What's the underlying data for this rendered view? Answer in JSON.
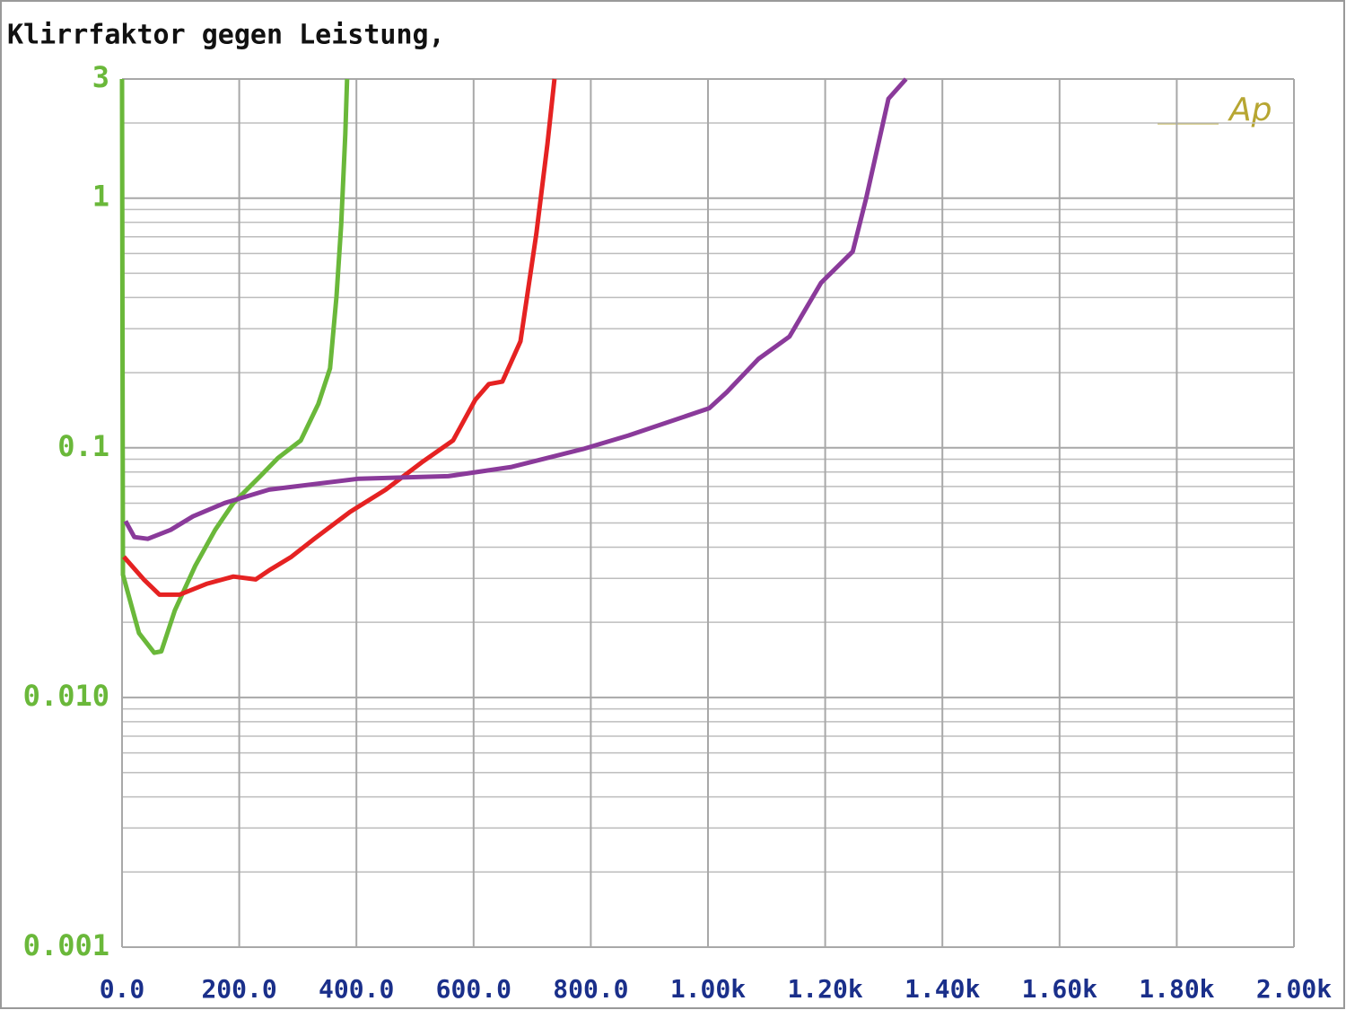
{
  "chart_data": {
    "type": "line",
    "title": "Klirrfaktor gegen Leistung,",
    "logo": "Ap",
    "log_y": true,
    "grid": true,
    "minor_grid": true,
    "xlim": [
      0,
      2000
    ],
    "ylim": [
      0.001,
      3
    ],
    "xticks": [
      {
        "value": 0,
        "label": "0.0"
      },
      {
        "value": 200,
        "label": "200.0"
      },
      {
        "value": 400,
        "label": "400.0"
      },
      {
        "value": 600,
        "label": "600.0"
      },
      {
        "value": 800,
        "label": "800.0"
      },
      {
        "value": 1000,
        "label": "1.00k"
      },
      {
        "value": 1200,
        "label": "1.20k"
      },
      {
        "value": 1400,
        "label": "1.40k"
      },
      {
        "value": 1600,
        "label": "1.60k"
      },
      {
        "value": 1800,
        "label": "1.80k"
      },
      {
        "value": 2000,
        "label": "2.00k"
      }
    ],
    "yticks": [
      3,
      1,
      0.1,
      {
        "value": 0.01,
        "label": "0.010"
      },
      0.001
    ],
    "series": [
      {
        "color": "#6ab83a",
        "x": [
          0,
          1.5,
          29,
          55,
          67,
          90,
          125,
          159,
          190,
          236,
          266,
          305,
          335,
          355,
          366,
          374,
          381,
          384
        ],
        "values": [
          3,
          0.031,
          0.0181,
          0.0151,
          0.0153,
          0.0223,
          0.0337,
          0.0469,
          0.0601,
          0.077,
          0.091,
          0.107,
          0.15,
          0.208,
          0.404,
          0.78,
          1.8,
          3
        ]
      },
      {
        "color": "#e52222",
        "x": [
          3,
          37,
          64,
          98,
          144,
          190,
          228,
          251,
          289,
          328,
          389,
          450,
          511,
          565,
          603,
          626,
          649,
          680,
          707,
          726,
          738
        ],
        "values": [
          0.0366,
          0.0297,
          0.0258,
          0.0258,
          0.0285,
          0.0305,
          0.0297,
          0.0323,
          0.0366,
          0.0432,
          0.0553,
          0.068,
          0.0873,
          0.107,
          0.156,
          0.18,
          0.184,
          0.267,
          0.72,
          1.65,
          3
        ]
      },
      {
        "color": "#8a3a9a",
        "x": [
          6,
          21,
          44,
          83,
          121,
          175,
          251,
          404,
          557,
          665,
          787,
          864,
          1002,
          1032,
          1086,
          1139,
          1193,
          1247,
          1270,
          1308,
          1338
        ],
        "values": [
          0.0509,
          0.0439,
          0.0432,
          0.0469,
          0.0531,
          0.0601,
          0.068,
          0.0752,
          0.077,
          0.0838,
          0.0989,
          0.112,
          0.144,
          0.167,
          0.227,
          0.279,
          0.458,
          0.611,
          1.0,
          2.5,
          3
        ]
      }
    ]
  }
}
